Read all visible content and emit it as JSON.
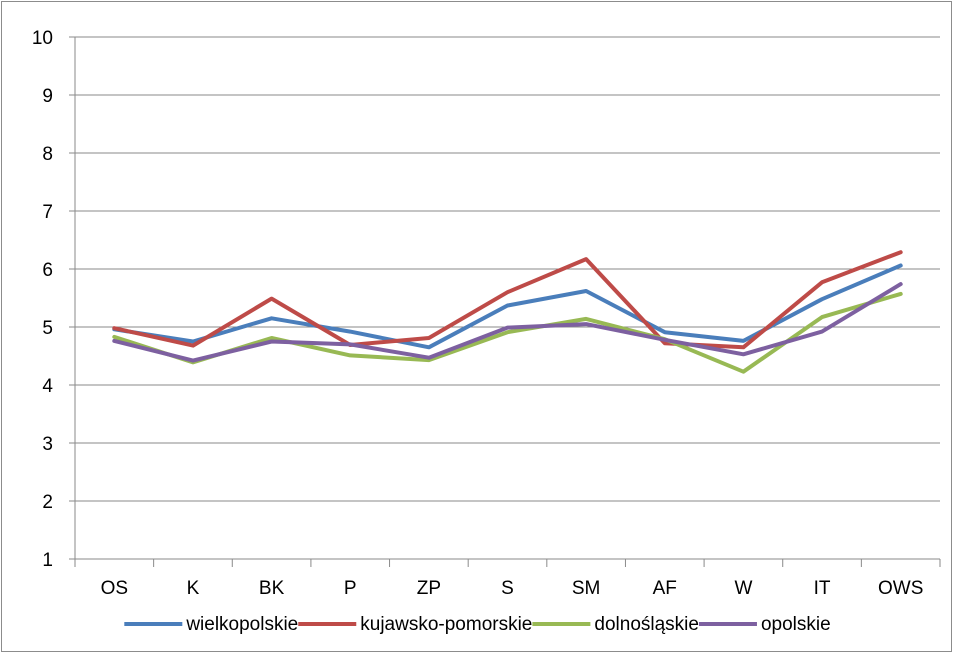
{
  "chart_data": {
    "type": "line",
    "title": "",
    "xlabel": "",
    "ylabel": "",
    "ylim": [
      1,
      10
    ],
    "yticks": [
      "1",
      "2",
      "3",
      "4",
      "5",
      "6",
      "7",
      "8",
      "9",
      "10"
    ],
    "categories": [
      "OS",
      "K",
      "BK",
      "P",
      "ZP",
      "S",
      "SM",
      "AF",
      "W",
      "IT",
      "OWS"
    ],
    "grid": "horizontal",
    "legend_position": "bottom",
    "series": [
      {
        "name": "wielkopolskie",
        "color": "#4a7ebb",
        "values": [
          4.96,
          4.75,
          5.15,
          4.92,
          4.65,
          5.37,
          5.62,
          4.91,
          4.76,
          5.48,
          6.06
        ]
      },
      {
        "name": "kujawsko-pomorskie",
        "color": "#be4b48",
        "values": [
          4.98,
          4.68,
          5.49,
          4.69,
          4.81,
          5.6,
          6.17,
          4.72,
          4.65,
          5.77,
          6.29
        ]
      },
      {
        "name": "dolnośląskie",
        "color": "#98b954",
        "values": [
          4.83,
          4.39,
          4.81,
          4.51,
          4.43,
          4.91,
          5.14,
          4.79,
          4.23,
          5.17,
          5.57
        ]
      },
      {
        "name": "opolskie",
        "color": "#7d60a0",
        "values": [
          4.76,
          4.42,
          4.75,
          4.7,
          4.47,
          4.99,
          5.05,
          4.78,
          4.53,
          4.92,
          5.74
        ]
      }
    ]
  }
}
